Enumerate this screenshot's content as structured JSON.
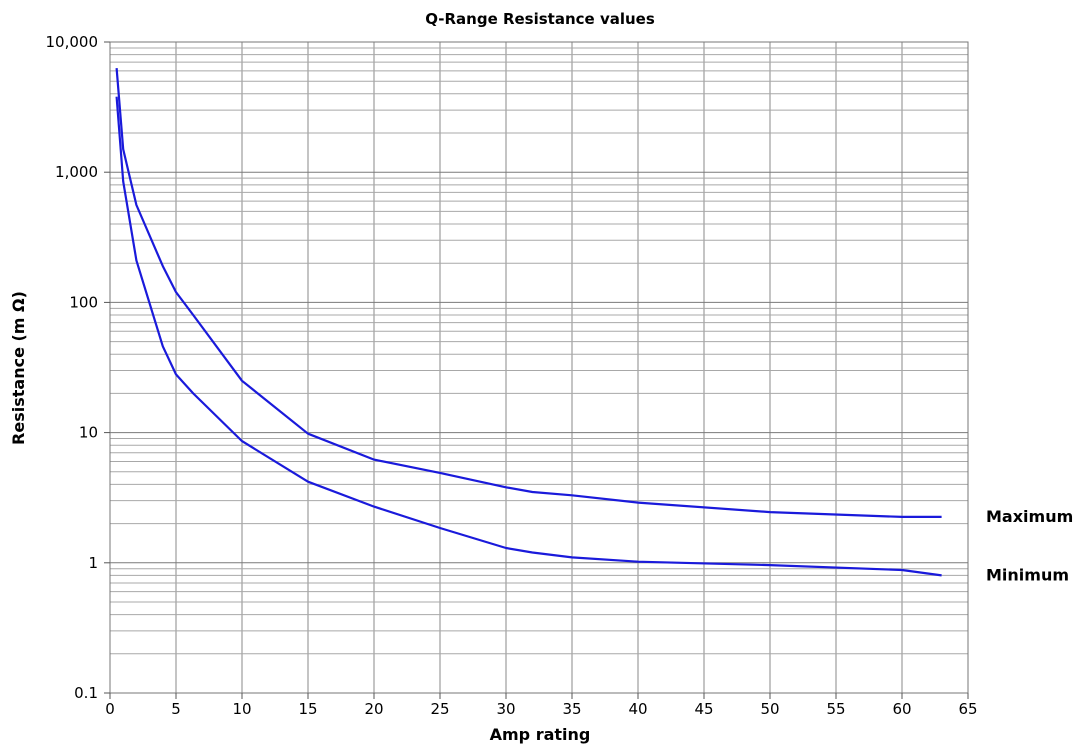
{
  "chart_data": {
    "type": "line",
    "title": "Q-Range Resistance values",
    "xlabel": "Amp rating",
    "ylabel": "Resistance (m Ω)",
    "y_scale": "log",
    "xlim": [
      0,
      65
    ],
    "ylim": [
      0.1,
      10000
    ],
    "grid": true,
    "x_ticks": [
      0,
      5,
      10,
      15,
      20,
      25,
      30,
      35,
      40,
      45,
      50,
      55,
      60,
      65
    ],
    "x_tick_labels": [
      "0",
      "5",
      "10",
      "15",
      "20",
      "25",
      "30",
      "35",
      "40",
      "45",
      "50",
      "55",
      "60",
      "65"
    ],
    "y_ticks": [
      0.1,
      1,
      10,
      100,
      1000,
      10000
    ],
    "y_tick_labels": [
      "0.1",
      "1",
      "10",
      "100",
      "1,000",
      "10,000"
    ],
    "series_color": "#1a1adb",
    "series": [
      {
        "name": "Maximum",
        "x": [
          0.5,
          1,
          2,
          4,
          5,
          6.3,
          10,
          15,
          20,
          25,
          30,
          32,
          35,
          40,
          50,
          60,
          63
        ],
        "y": [
          6300,
          1500,
          560,
          190,
          120,
          80,
          25,
          9.8,
          6.2,
          4.9,
          3.8,
          3.5,
          3.3,
          2.9,
          2.45,
          2.25,
          2.25
        ]
      },
      {
        "name": "Minimum",
        "x": [
          0.5,
          1,
          2,
          4,
          5,
          6.3,
          10,
          15,
          20,
          25,
          30,
          32,
          35,
          40,
          50,
          60,
          63
        ],
        "y": [
          3800,
          850,
          210,
          46,
          28,
          20,
          8.6,
          4.2,
          2.7,
          1.85,
          1.3,
          1.2,
          1.1,
          1.02,
          0.96,
          0.88,
          0.8
        ]
      }
    ]
  }
}
